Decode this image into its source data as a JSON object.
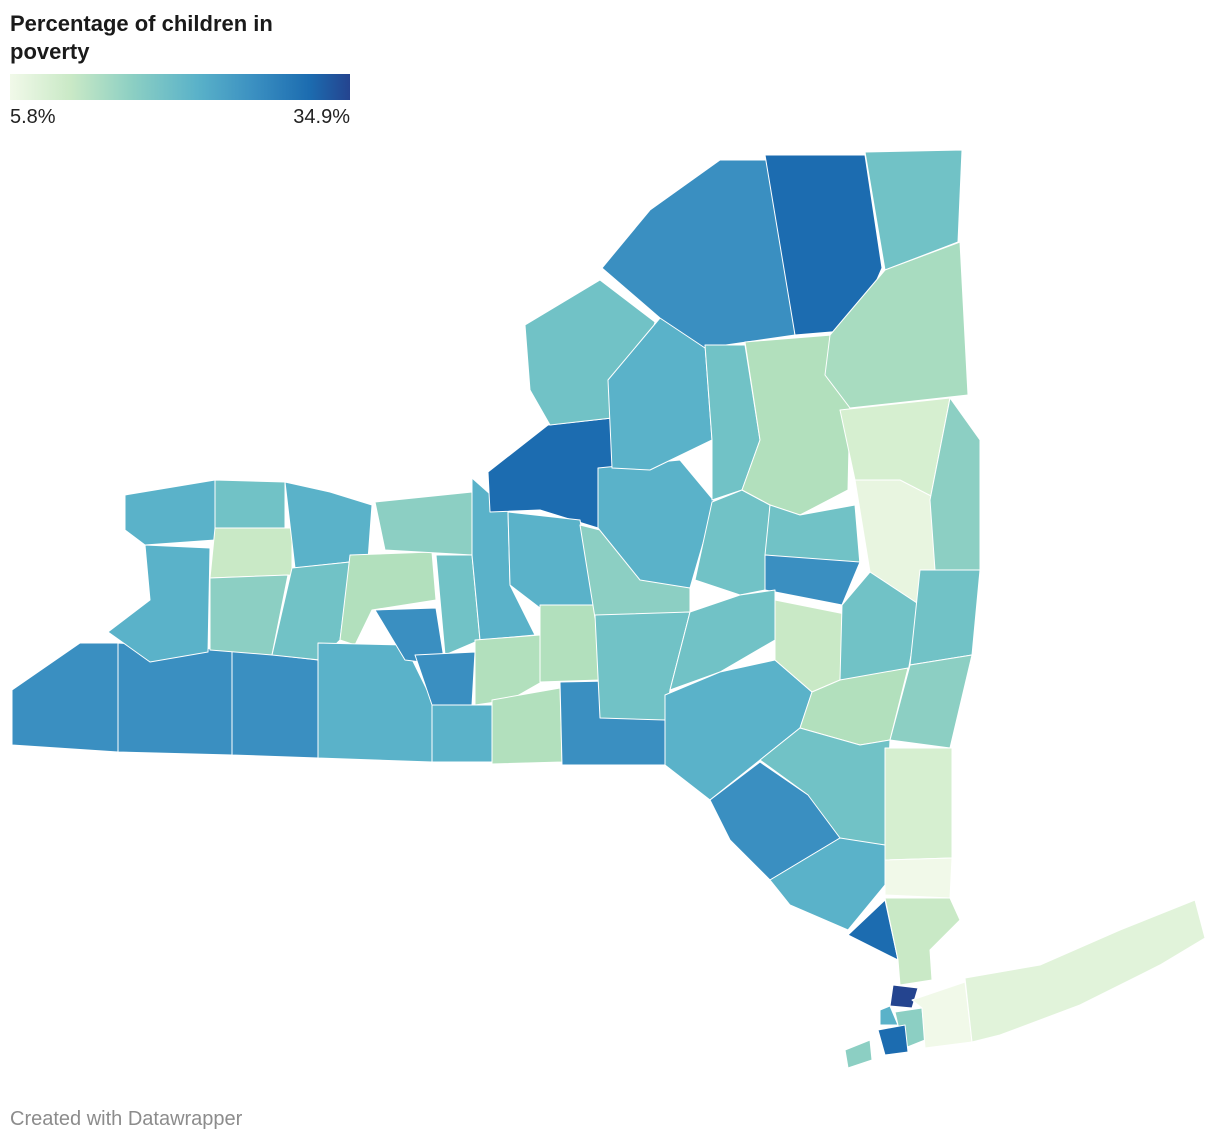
{
  "title": "Percentage of children in poverty",
  "legend": {
    "min_label": "5.8%",
    "max_label": "34.9%",
    "min": 5.8,
    "max": 34.9
  },
  "credit": "Created with Datawrapper",
  "colors": {
    "low": "#f1f9e9",
    "c2": "#d6efd0",
    "c3": "#b2e0bd",
    "c4": "#8ccfc3",
    "c5": "#71c2c6",
    "c6": "#5ab2c9",
    "c7": "#3a8fc1",
    "c8": "#1c6cb0",
    "high": "#24448f"
  }
}
